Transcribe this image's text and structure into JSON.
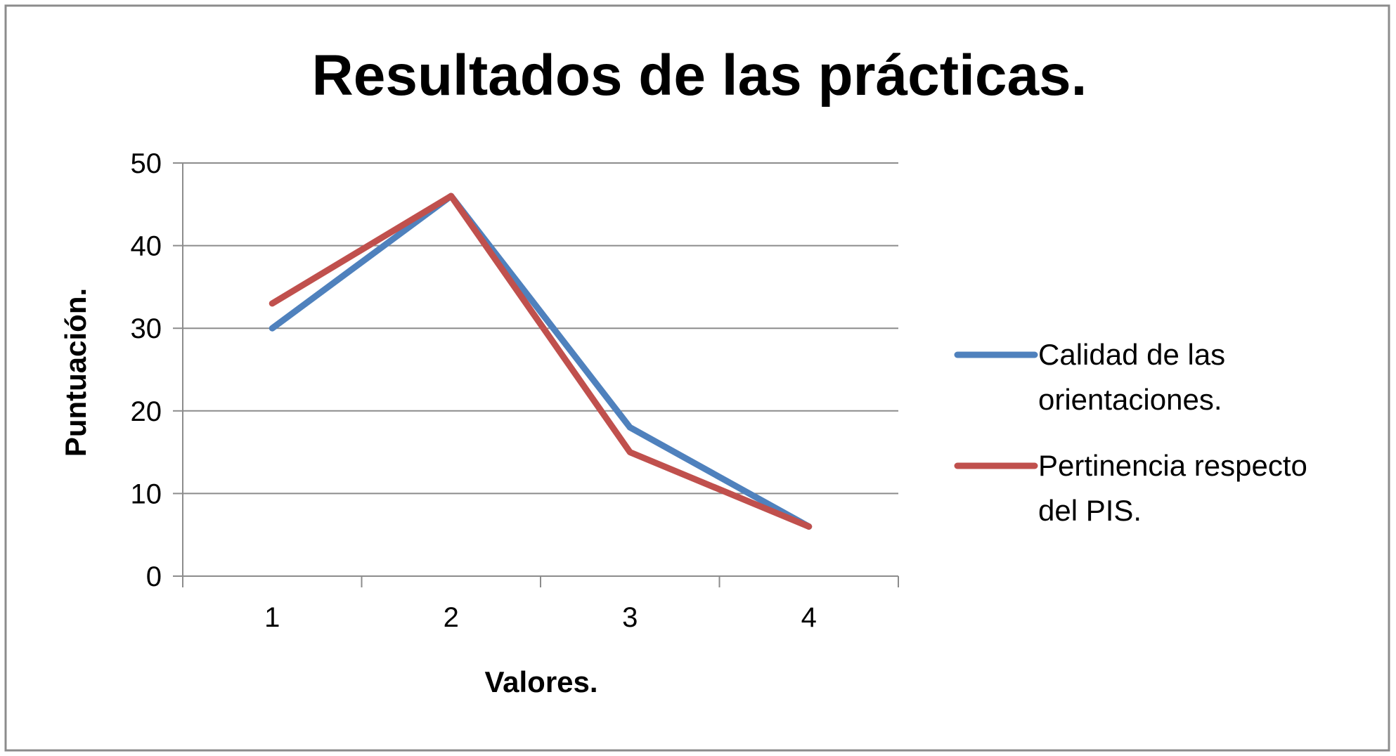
{
  "chart_data": {
    "type": "line",
    "title": "Resultados de las prácticas.",
    "xlabel": "Valores.",
    "ylabel": "Puntuación.",
    "categories": [
      "1",
      "2",
      "3",
      "4"
    ],
    "ylim": [
      0,
      50
    ],
    "yticks": [
      0,
      10,
      20,
      30,
      40,
      50
    ],
    "grid": true,
    "legend_position": "right",
    "series": [
      {
        "name": "Calidad de las orientaciones.",
        "values": [
          30,
          46,
          18,
          6
        ],
        "color": "#4f81bd"
      },
      {
        "name": "Pertinencia respecto del PIS.",
        "values": [
          33,
          46,
          15,
          6
        ],
        "color": "#c0504d"
      }
    ]
  }
}
